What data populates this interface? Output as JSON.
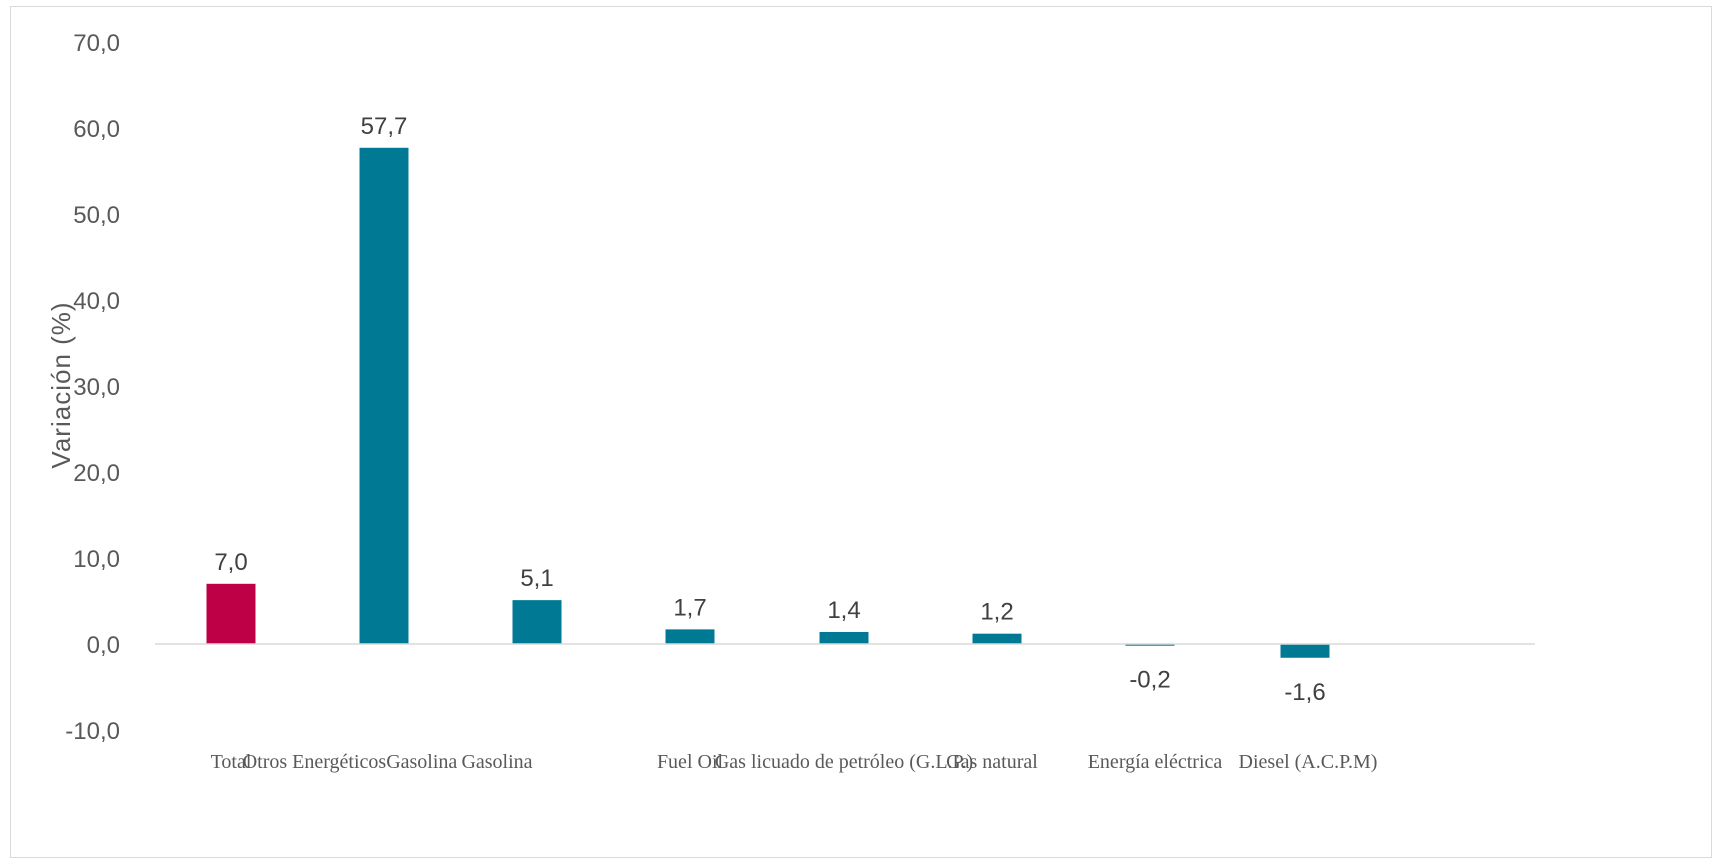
{
  "chart_data": {
    "type": "bar",
    "title": "",
    "xlabel": "",
    "ylabel": "Variación (%)",
    "ylim": [
      -10,
      70
    ],
    "ytick_step": 10,
    "ytick_labels": [
      "-10,0",
      "0,0",
      "10,0",
      "20,0",
      "30,0",
      "40,0",
      "50,0",
      "60,0",
      "70,0"
    ],
    "grid": false,
    "categories": [
      "Total",
      "Otros EnergéticosGasolina",
      "Gasolina",
      "Fuel Oil",
      "Gas licuado de petróleo (G.L.P.)",
      "Gas natural",
      "Energía eléctrica",
      "Diesel (A.C.P.M)"
    ],
    "values": [
      7.0,
      57.7,
      5.1,
      1.7,
      1.4,
      1.2,
      -0.2,
      -1.6
    ],
    "data_labels": [
      "7,0",
      "57,7",
      "5,1",
      "1,7",
      "1,4",
      "1,2",
      "-0,2",
      "-1,6"
    ],
    "colors": {
      "highlight": "#BE0046",
      "default": "#007A94",
      "axis": "#d9d9d9"
    },
    "highlight_index": 0
  }
}
